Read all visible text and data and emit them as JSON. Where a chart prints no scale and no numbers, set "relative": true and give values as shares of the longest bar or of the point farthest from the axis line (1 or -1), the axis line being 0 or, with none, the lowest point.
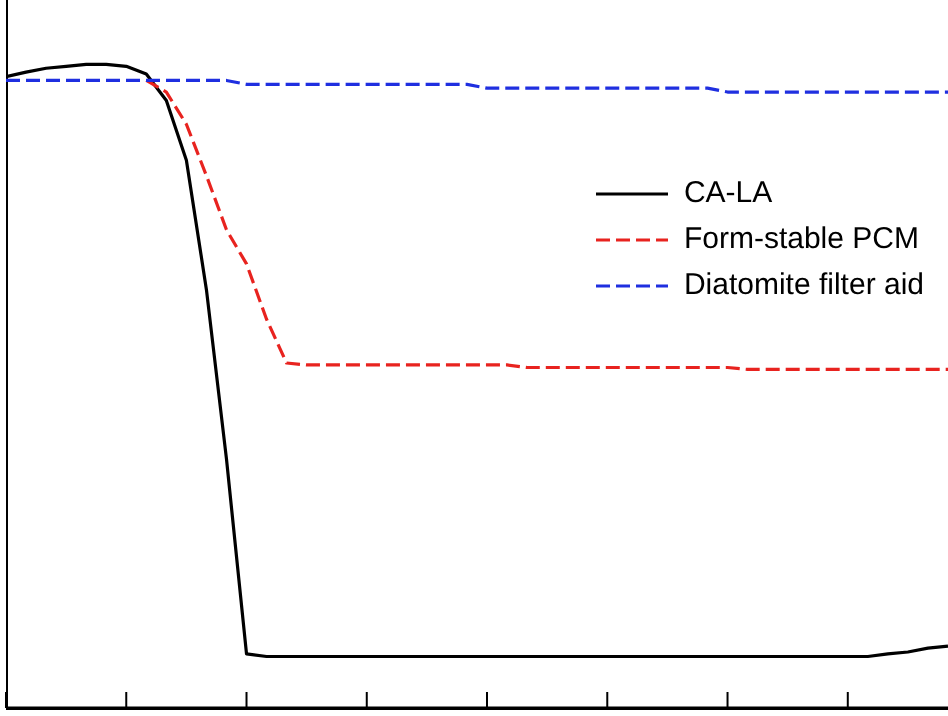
{
  "chart_data": {
    "type": "line",
    "relative": true,
    "legend": "top right",
    "marker": "none",
    "categories": [
      null,
      null,
      null,
      null,
      null,
      null,
      null,
      null,
      null,
      null,
      null,
      null,
      null,
      null,
      null,
      null,
      null,
      null,
      null,
      null,
      null,
      null,
      null,
      null,
      null,
      null,
      null,
      null,
      null,
      null,
      null,
      null,
      null,
      null,
      null,
      null,
      null,
      null,
      null,
      null,
      null,
      null,
      null,
      null,
      null,
      null,
      null,
      null
    ],
    "series": [
      {
        "name": "CA-LA",
        "color": "#000000",
        "line_style": "solid",
        "values": [
          0.981,
          0.988,
          0.994,
          0.997,
          1,
          1,
          0.997,
          0.985,
          0.944,
          0.851,
          0.65,
          0.387,
          0.084,
          0.08,
          0.08,
          0.08,
          0.08,
          0.08,
          0.08,
          0.08,
          0.08,
          0.08,
          0.08,
          0.08,
          0.08,
          0.08,
          0.08,
          0.08,
          0.08,
          0.08,
          0.08,
          0.08,
          0.08,
          0.08,
          0.08,
          0.08,
          0.08,
          0.08,
          0.08,
          0.08,
          0.08,
          0.08,
          0.08,
          0.08,
          0.084,
          0.087,
          0.093,
          0.096
        ]
      },
      {
        "name": "Form-stable PCM",
        "color": "#e8231f",
        "line_style": "dashed",
        "values": [
          null,
          null,
          null,
          null,
          null,
          null,
          null,
          0.975,
          0.957,
          0.907,
          0.827,
          0.743,
          0.69,
          0.604,
          0.536,
          0.533,
          0.533,
          0.533,
          0.533,
          0.533,
          0.533,
          0.533,
          0.533,
          0.533,
          0.533,
          0.533,
          0.529,
          0.529,
          0.529,
          0.529,
          0.529,
          0.529,
          0.529,
          0.529,
          0.529,
          0.529,
          0.529,
          0.526,
          0.526,
          0.526,
          0.526,
          0.526,
          0.526,
          0.526,
          0.526,
          0.526,
          0.526,
          0.526
        ]
      },
      {
        "name": "Diatomite filter aid",
        "color": "#1f2fe0",
        "line_style": "dashed",
        "values": [
          0.975,
          0.975,
          0.975,
          0.975,
          0.975,
          0.975,
          0.975,
          0.975,
          0.975,
          0.975,
          0.975,
          0.975,
          0.969,
          0.969,
          0.969,
          0.969,
          0.969,
          0.969,
          0.969,
          0.969,
          0.969,
          0.969,
          0.969,
          0.969,
          0.963,
          0.963,
          0.963,
          0.963,
          0.963,
          0.963,
          0.963,
          0.963,
          0.963,
          0.963,
          0.963,
          0.963,
          0.957,
          0.957,
          0.957,
          0.957,
          0.957,
          0.957,
          0.957,
          0.957,
          0.957,
          0.957,
          0.957,
          0.957
        ]
      }
    ]
  }
}
